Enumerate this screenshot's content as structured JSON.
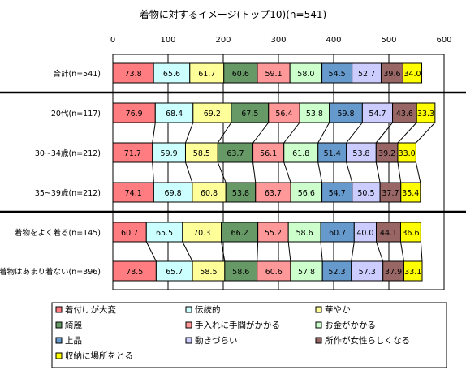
{
  "chart_data": {
    "type": "bar",
    "orientation": "horizontal",
    "stacked": true,
    "title": "着物に対するイメージ(トップ10)(n=541)",
    "xlim": [
      0,
      600
    ],
    "xticks": [
      "0",
      "100",
      "200",
      "300",
      "400",
      "500",
      "600"
    ],
    "grid": true,
    "legend_position": "bottom",
    "categories": [
      "合計(n=541)",
      "20代(n=117)",
      "30~34歳(n=212)",
      "35~39歳(n=212)",
      "着物をよく着る(n=145)",
      "着物はあまり着ない(n=396)"
    ],
    "series": [
      {
        "name": "着付けが大変",
        "color": "#FF7C80",
        "values": [
          73.8,
          76.9,
          71.7,
          74.1,
          60.7,
          78.5
        ]
      },
      {
        "name": "伝統的",
        "color": "#CCFFFF",
        "values": [
          65.6,
          68.4,
          59.9,
          69.8,
          65.5,
          65.7
        ]
      },
      {
        "name": "華やか",
        "color": "#FFFF99",
        "values": [
          61.7,
          69.2,
          58.5,
          60.8,
          70.3,
          58.5
        ]
      },
      {
        "name": "綺麗",
        "color": "#669966",
        "values": [
          60.6,
          67.5,
          63.7,
          53.8,
          66.2,
          58.6
        ]
      },
      {
        "name": "手入れに手間がかかる",
        "color": "#FF9999",
        "values": [
          59.1,
          56.4,
          56.1,
          63.7,
          55.2,
          60.6
        ]
      },
      {
        "name": "お金がかかる",
        "color": "#CCFFCC",
        "values": [
          58.0,
          53.8,
          61.8,
          56.6,
          58.6,
          57.8
        ]
      },
      {
        "name": "上品",
        "color": "#6699CC",
        "values": [
          54.5,
          59.8,
          51.4,
          54.7,
          60.7,
          52.3
        ]
      },
      {
        "name": "動きづらい",
        "color": "#CCCCFF",
        "values": [
          52.7,
          54.7,
          53.8,
          50.5,
          40.0,
          57.3
        ]
      },
      {
        "name": "所作が女性らしくなる",
        "color": "#996666",
        "values": [
          39.6,
          43.6,
          39.2,
          37.7,
          44.1,
          37.9
        ]
      },
      {
        "name": "収納に場所をとる",
        "color": "#FFFF00",
        "values": [
          34.0,
          33.3,
          33.0,
          35.4,
          36.6,
          33.1
        ]
      }
    ],
    "value_labels": [
      [
        "73.8",
        "65.6",
        "61.7",
        "60.6",
        "59.1",
        "58.0",
        "54.5",
        "52.7",
        "39.6",
        "34.0"
      ],
      [
        "76.9",
        "68.4",
        "69.2",
        "67.5",
        "56.4",
        "53.8",
        "59.8",
        "54.7",
        "43.6",
        "33.3"
      ],
      [
        "71.7",
        "59.9",
        "58.5",
        "63.7",
        "56.1",
        "61.8",
        "51.4",
        "53.8",
        "39.2",
        "33.0"
      ],
      [
        "74.1",
        "69.8",
        "60.8",
        "53.8",
        "63.7",
        "56.6",
        "54.7",
        "50.5",
        "37.7",
        "35.4"
      ],
      [
        "60.7",
        "65.5",
        "70.3",
        "66.2",
        "55.2",
        "58.6",
        "60.7",
        "40.0",
        "44.1",
        "36.6"
      ],
      [
        "78.5",
        "65.7",
        "58.5",
        "58.6",
        "60.6",
        "57.8",
        "52.3",
        "57.3",
        "37.9",
        "33.1"
      ]
    ]
  }
}
